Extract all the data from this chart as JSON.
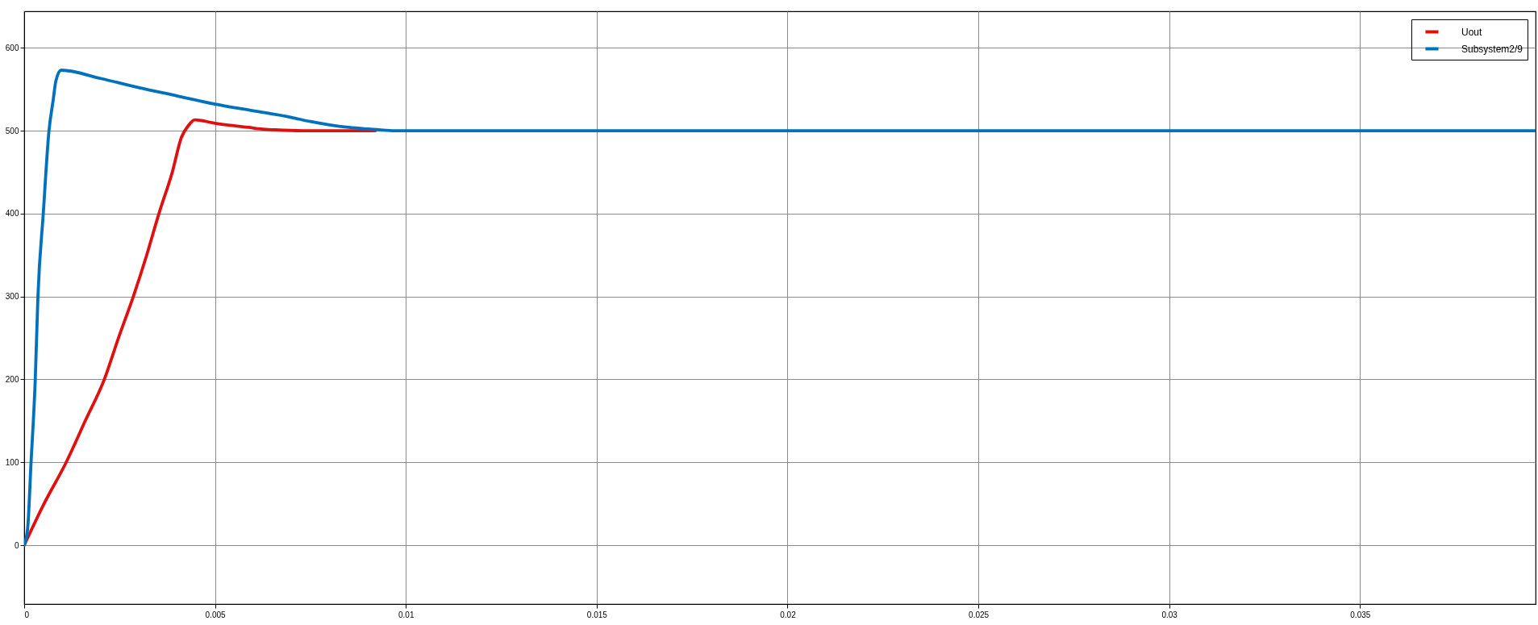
{
  "chart_data": {
    "type": "line",
    "xlim": [
      0,
      0.0396
    ],
    "xticks": [
      0,
      0.005,
      0.01,
      0.015,
      0.02,
      0.025,
      0.03,
      0.035
    ],
    "ylim": [
      -71,
      644
    ],
    "yticks": [
      0,
      100,
      200,
      300,
      400,
      500,
      600
    ],
    "grid": true,
    "legend": "top right",
    "series": [
      {
        "name": "Uout",
        "color": "#e01010",
        "x": [
          0,
          0.00052,
          0.0011,
          0.0016,
          0.0021,
          0.00247,
          0.00286,
          0.00321,
          0.00353,
          0.00388,
          0.00412,
          0.0043,
          0.00447,
          0.005,
          0.0055,
          0.00588,
          0.0062,
          0.00658,
          0.0073,
          0.0092
        ],
        "values": [
          0,
          50,
          100,
          150,
          200,
          250,
          300,
          350,
          400,
          450,
          492,
          506,
          513,
          509,
          506,
          504,
          502,
          501,
          500,
          500
        ]
      },
      {
        "name": "Subsystem2/9",
        "color": "#0072bd",
        "x": [
          0,
          9e-05,
          0.00018,
          0.00029,
          0.00036,
          0.0005,
          0.00065,
          0.00076,
          0.00083,
          0.00097,
          0.002,
          0.003,
          0.004,
          0.005,
          0.006,
          0.007,
          0.0075,
          0.008,
          0.0085,
          0.009,
          0.0093,
          0.0097,
          0.02,
          0.03,
          0.0396
        ],
        "values": [
          0,
          20,
          100,
          200,
          300,
          400,
          500,
          537,
          560,
          573,
          563,
          552,
          542,
          532,
          524,
          516,
          511,
          507,
          504,
          502,
          501,
          500,
          500,
          500,
          500
        ]
      }
    ]
  }
}
